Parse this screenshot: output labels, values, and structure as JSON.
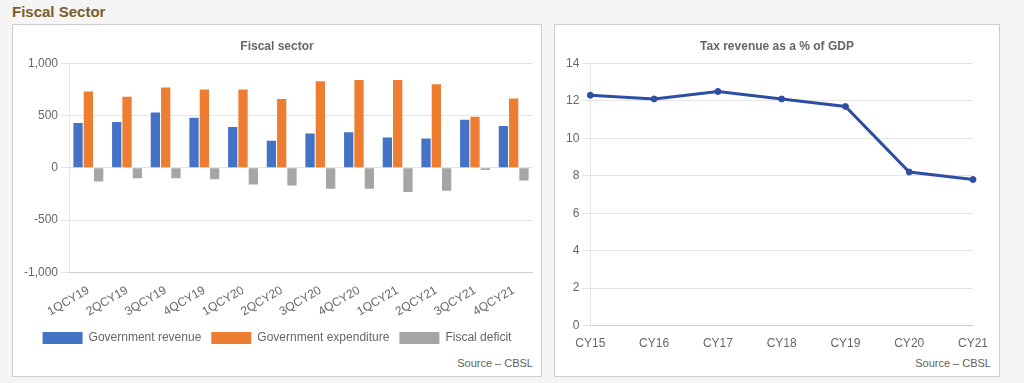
{
  "title": "Fiscal Sector",
  "chart_data": [
    {
      "type": "bar",
      "title": "Fiscal sector",
      "categories": [
        "1QCY19",
        "2QCY19",
        "3QCY19",
        "4QCY19",
        "1QCY20",
        "2QCY20",
        "3QCY20",
        "4QCY20",
        "1QCY21",
        "2QCY21",
        "3QCY21",
        "4QCY21"
      ],
      "series": [
        {
          "name": "Government revenue",
          "color": "#4472C4",
          "values": [
            430,
            440,
            530,
            480,
            390,
            260,
            330,
            340,
            290,
            280,
            460,
            400
          ]
        },
        {
          "name": "Government expenditure",
          "color": "#ED7D31",
          "values": [
            730,
            680,
            770,
            750,
            750,
            660,
            830,
            840,
            840,
            800,
            490,
            665
          ]
        },
        {
          "name": "Fiscal deficit",
          "color": "#A5A5A5",
          "values": [
            -130,
            -100,
            -100,
            -110,
            -160,
            -170,
            -200,
            -200,
            -230,
            -220,
            -20,
            -120
          ]
        }
      ],
      "ylim": [
        -1000,
        1000
      ],
      "yticks": [
        {
          "value": -1000,
          "label": "-1,000"
        },
        -500,
        0,
        500,
        {
          "value": 1000,
          "label": "1,000"
        }
      ],
      "grid": true,
      "legend": "bottom",
      "annotations": [
        "Source – CBSL"
      ]
    },
    {
      "type": "line",
      "title": "Tax revenue as a % of GDP",
      "categories": [
        "CY15",
        "CY16",
        "CY17",
        "CY18",
        "CY19",
        "CY20",
        "CY21"
      ],
      "values": [
        12.3,
        12.1,
        12.5,
        12.1,
        11.7,
        8.2,
        7.8
      ],
      "color": "#2E4EA3",
      "ylim": [
        0,
        14
      ],
      "yticks": [
        0,
        2,
        4,
        6,
        8,
        10,
        12,
        14
      ],
      "grid": true,
      "annotations": [
        "Source – CBSL"
      ]
    }
  ]
}
